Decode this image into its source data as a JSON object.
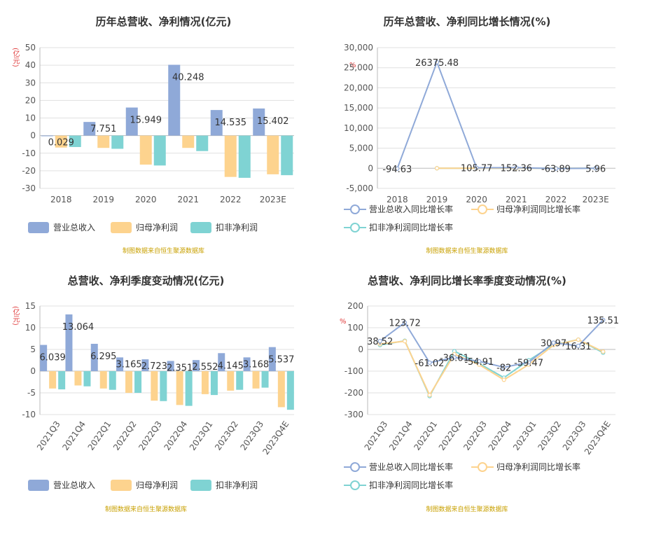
{
  "colors": {
    "revenue": "#8fa9d8",
    "net_profit": "#fdd38e",
    "deducted_profit": "#7fd3d3",
    "grid": "#e0e0e0",
    "axis_text": "#555555",
    "unit_red": "#e03c3c"
  },
  "source_text": "制图数据来自恒生聚源数据库",
  "charts": {
    "annual_bar": {
      "title": "历年总营收、净利情况(亿元)",
      "unit": "(亿元)",
      "legend": [
        "营业总收入",
        "归母净利润",
        "扣非净利润"
      ]
    },
    "annual_growth": {
      "title": "历年总营收、净利同比增长情况(%)",
      "unit": "%",
      "legend": [
        "营业总收入同比增长率",
        "归母净利润同比增长率",
        "扣非净利润同比增长率"
      ]
    },
    "quarter_bar": {
      "title": "总营收、净利季度变动情况(亿元)",
      "unit": "(亿元)",
      "legend": [
        "营业总收入",
        "归母净利润",
        "扣非净利润"
      ]
    },
    "quarter_growth": {
      "title": "总营收、净利同比增长率季度变动情况(%)",
      "unit": "%",
      "legend": [
        "营业总收入同比增长率",
        "归母净利润同比增长率",
        "扣非净利润同比增长率"
      ]
    }
  },
  "chart_data": [
    {
      "type": "bar",
      "title": "历年总营收、净利情况(亿元)",
      "categories": [
        "2018",
        "2019",
        "2020",
        "2021",
        "2022",
        "2023E"
      ],
      "ylim": [
        -30,
        50
      ],
      "yticks": [
        50,
        40,
        30,
        20,
        10,
        0,
        -10,
        -20,
        -30
      ],
      "ytick_labels": [
        "50",
        "40",
        "30",
        "20",
        "10",
        "0",
        "-10",
        "-20",
        "-30"
      ],
      "legend_position": "bottom-left",
      "series": [
        {
          "name": "营业总收入",
          "values": [
            0.029,
            7.751,
            15.949,
            40.248,
            14.535,
            15.402
          ]
        },
        {
          "name": "归母净利润",
          "values": [
            -6.8,
            -7.0,
            -16.5,
            -7.0,
            -23.5,
            -22.0
          ]
        },
        {
          "name": "扣非净利润",
          "values": [
            -6.5,
            -7.5,
            -17.0,
            -8.8,
            -24.0,
            -22.5
          ]
        }
      ],
      "data_labels": [
        "0.029",
        "7.751",
        "15.949",
        "40.248",
        "14.535",
        "15.402"
      ]
    },
    {
      "type": "line",
      "title": "历年总营收、净利同比增长情况(%)",
      "categories": [
        "2018",
        "2019",
        "2020",
        "2021",
        "2022",
        "2023E"
      ],
      "ylim": [
        -5000,
        30000
      ],
      "yticks": [
        30000,
        25000,
        20000,
        15000,
        10000,
        5000,
        0,
        -5000
      ],
      "ytick_labels": [
        "30,000",
        "25,000",
        "20,000",
        "15,000",
        "10,000",
        "5,000",
        "0",
        "-5,000"
      ],
      "legend_position": "bottom-left",
      "series": [
        {
          "name": "营业总收入同比增长率",
          "values": [
            -94.63,
            26375.48,
            105.77,
            152.36,
            -63.89,
            5.96
          ]
        },
        {
          "name": "归母净利润同比增长率",
          "values": [
            null,
            0,
            0,
            0,
            0,
            0
          ]
        },
        {
          "name": "扣非净利润同比增长率",
          "values": [
            null,
            0,
            0,
            0,
            0,
            0
          ]
        }
      ],
      "data_labels": [
        "-94.63",
        "26375.48",
        "105.77",
        "152.36",
        "-63.89",
        "5.96"
      ]
    },
    {
      "type": "bar",
      "title": "总营收、净利季度变动情况(亿元)",
      "categories": [
        "2021Q3",
        "2021Q4",
        "2022Q1",
        "2022Q2",
        "2022Q3",
        "2022Q4",
        "2023Q1",
        "2023Q2",
        "2023Q3",
        "2023Q4E"
      ],
      "ylim": [
        -10,
        15
      ],
      "yticks": [
        15,
        10,
        5,
        0,
        -5,
        -10
      ],
      "ytick_labels": [
        "15",
        "10",
        "5",
        "0",
        "-5",
        "-10"
      ],
      "legend_position": "bottom-left",
      "series": [
        {
          "name": "营业总收入",
          "values": [
            6.039,
            13.064,
            6.295,
            3.165,
            2.723,
            2.351,
            2.552,
            4.145,
            3.168,
            5.537
          ]
        },
        {
          "name": "归母净利润",
          "values": [
            -4.0,
            -3.3,
            -4.0,
            -5.0,
            -6.8,
            -7.8,
            -5.3,
            -4.5,
            -4.0,
            -8.3
          ]
        },
        {
          "name": "扣非净利润",
          "values": [
            -4.2,
            -3.5,
            -4.3,
            -5.0,
            -6.9,
            -8.0,
            -5.5,
            -4.3,
            -3.8,
            -8.9
          ]
        }
      ],
      "data_labels": [
        "6.039",
        "13.064",
        "6.295",
        "3.165",
        "2.723",
        "2.351",
        "2.552",
        "4.145",
        "3.168",
        "5.537"
      ]
    },
    {
      "type": "line",
      "title": "总营收、净利同比增长率季度变动情况(%)",
      "categories": [
        "2021Q3",
        "2021Q4",
        "2022Q1",
        "2022Q2",
        "2022Q3",
        "2022Q4",
        "2023Q1",
        "2023Q2",
        "2023Q3",
        "2023Q4E"
      ],
      "ylim": [
        -300,
        200
      ],
      "yticks": [
        200,
        100,
        0,
        -100,
        -200,
        -300
      ],
      "ytick_labels": [
        "200",
        "100",
        "0",
        "-100",
        "-200",
        "-300"
      ],
      "legend_position": "bottom-left",
      "series": [
        {
          "name": "营业总收入同比增长率",
          "values": [
            38.52,
            123.72,
            -61.02,
            -36.61,
            -54.91,
            -82,
            -59.47,
            30.97,
            16.31,
            135.51
          ]
        },
        {
          "name": "归母净利润同比增长率",
          "values": [
            25,
            38,
            -210,
            -22,
            -70,
            -140,
            -70,
            20,
            45,
            -10
          ]
        },
        {
          "name": "扣非净利润同比增长率",
          "values": [
            20,
            40,
            -215,
            -8,
            -65,
            -130,
            -50,
            22,
            45,
            -15
          ]
        }
      ],
      "data_labels": [
        "38.52",
        "123.72",
        "-61.02",
        "-36.61",
        "-54.91",
        "-82",
        "-59.47",
        "30.97",
        "16.31",
        "135.51"
      ]
    }
  ]
}
